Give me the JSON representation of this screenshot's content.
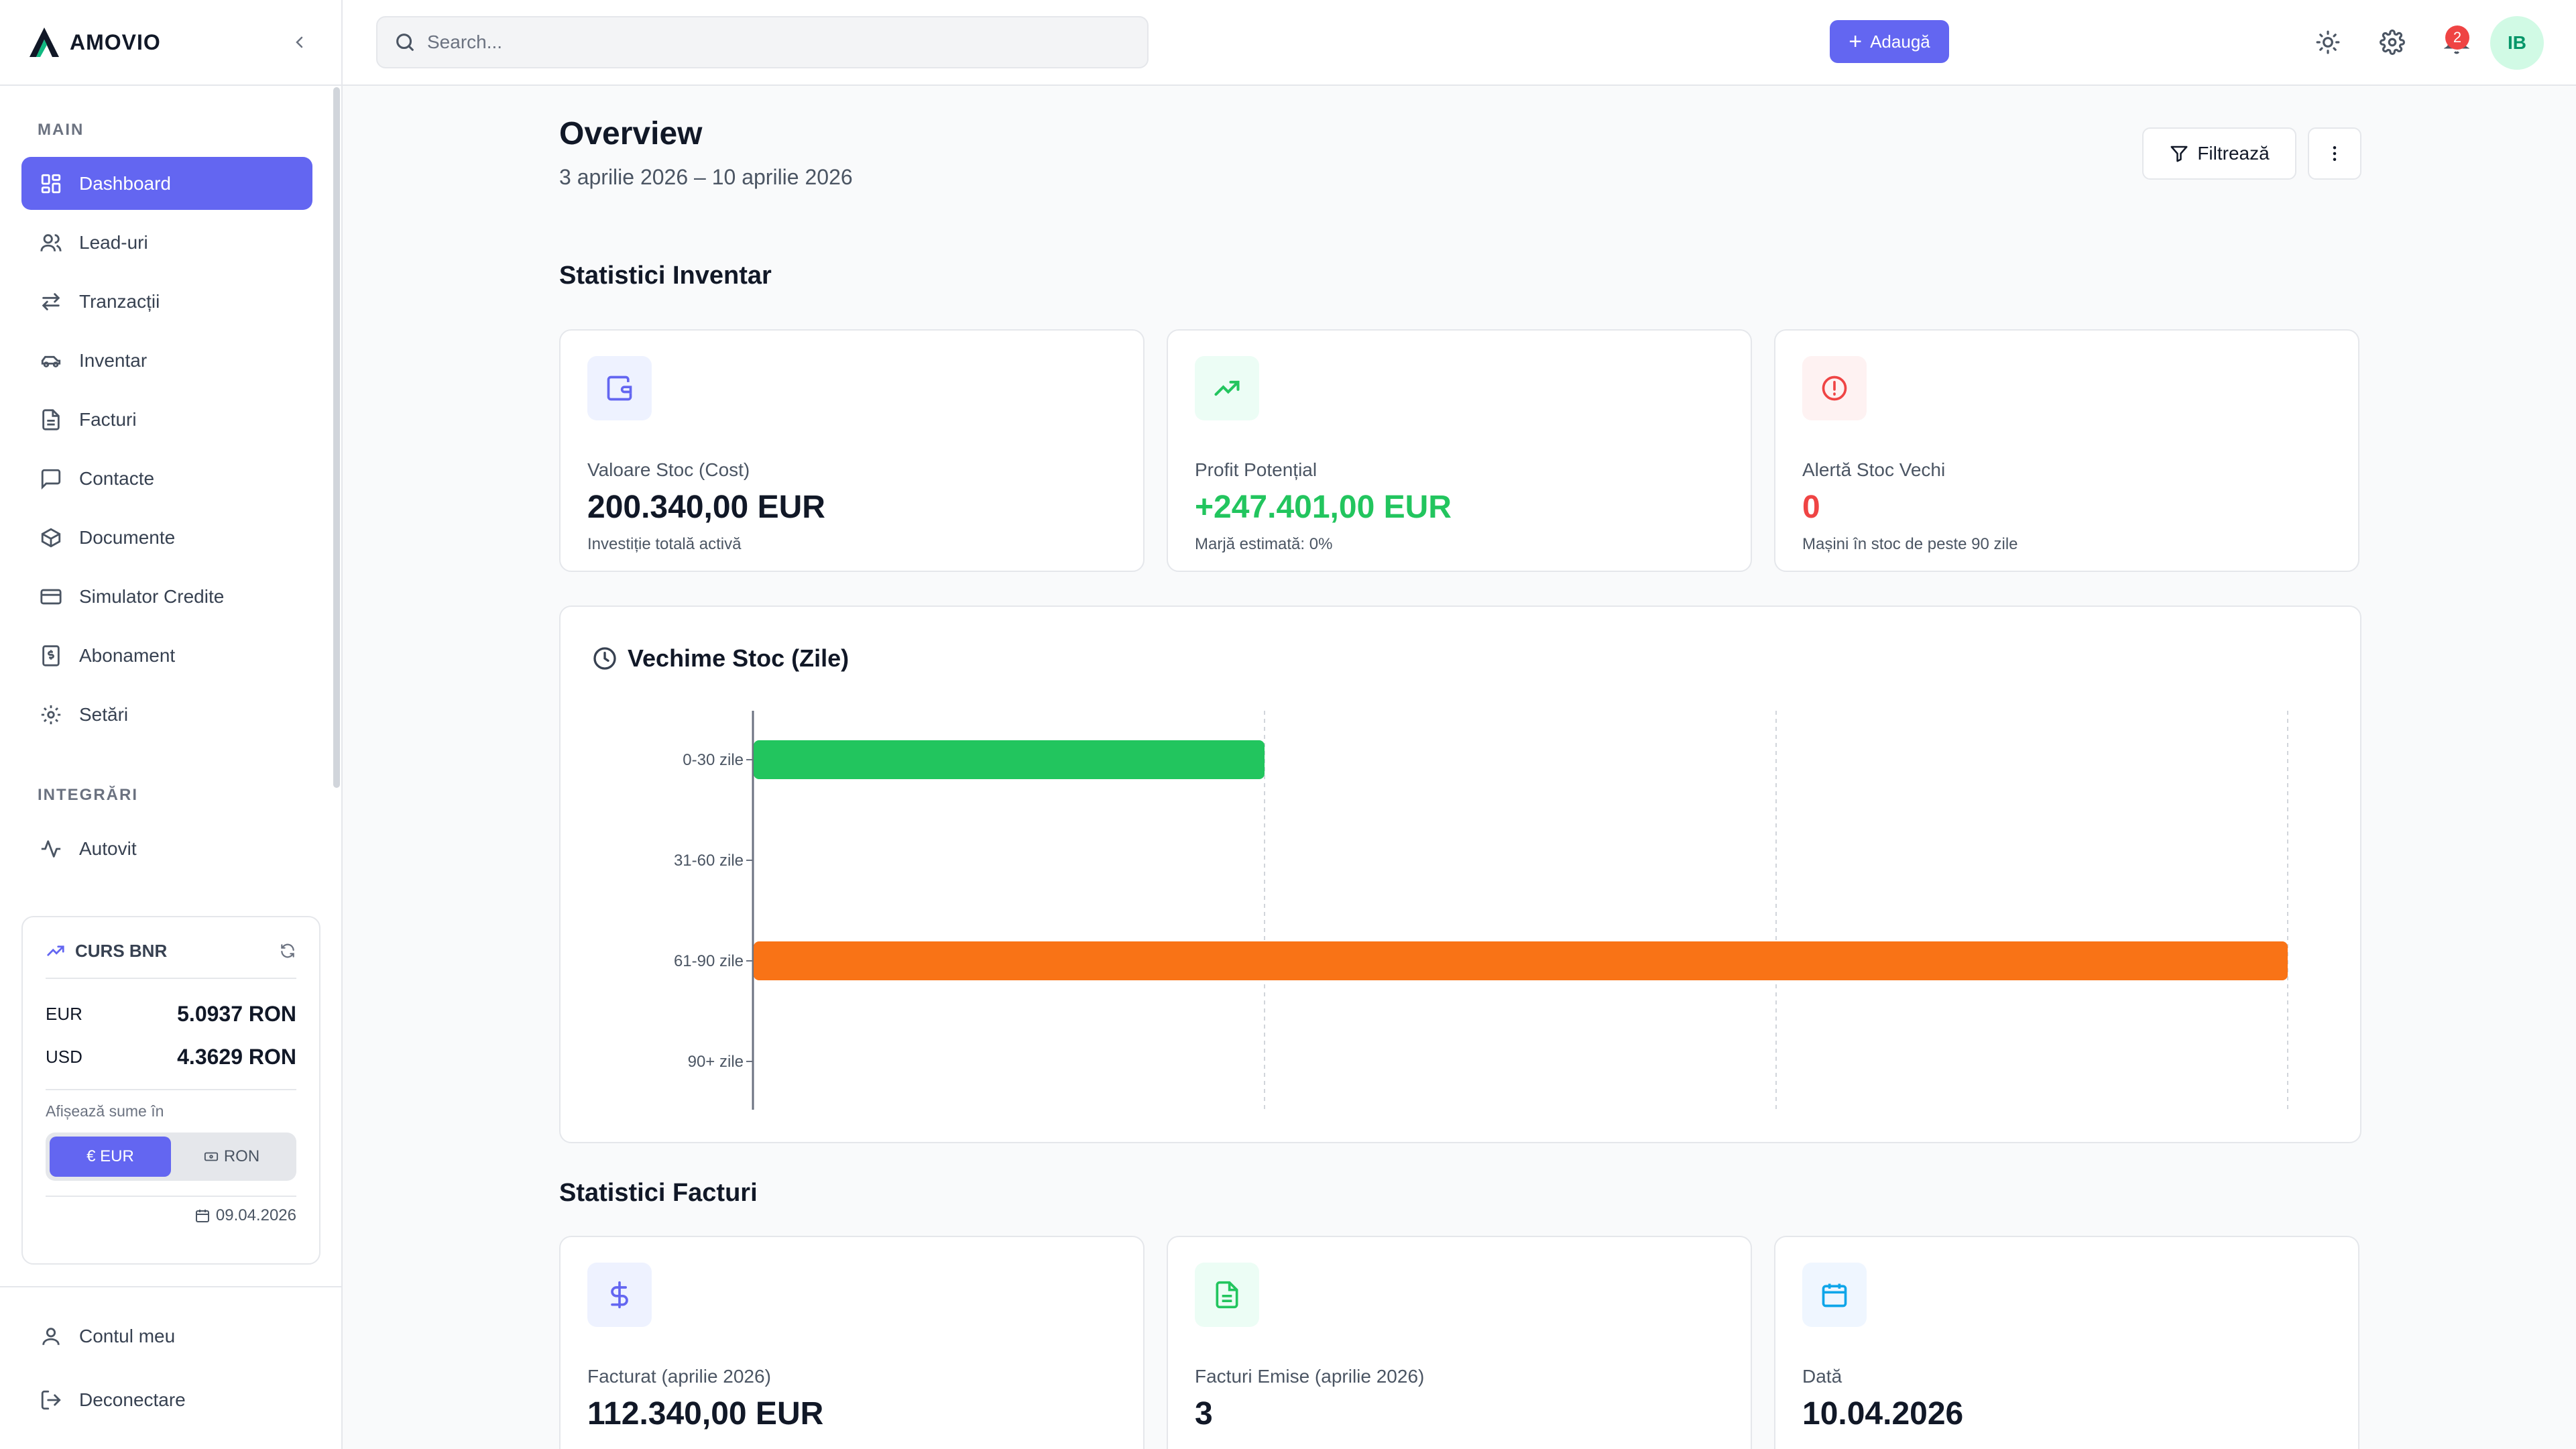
{
  "brand": {
    "name": "AMOVIO"
  },
  "sidebar": {
    "main_title": "MAIN",
    "items": [
      {
        "label": "Dashboard",
        "icon": "dashboard-icon",
        "active": true
      },
      {
        "label": "Lead-uri",
        "icon": "users-icon"
      },
      {
        "label": "Tranzacții",
        "icon": "arrows-icon"
      },
      {
        "label": "Inventar",
        "icon": "car-icon"
      },
      {
        "label": "Facturi",
        "icon": "file-icon"
      },
      {
        "label": "Contacte",
        "icon": "message-icon"
      },
      {
        "label": "Documente",
        "icon": "box-icon"
      },
      {
        "label": "Simulator Credite",
        "icon": "credit-card-icon"
      },
      {
        "label": "Abonament",
        "icon": "dollar-doc-icon"
      },
      {
        "label": "Setări",
        "icon": "gear-icon"
      }
    ],
    "integrations_title": "INTEGRĂRI",
    "integrations": [
      {
        "label": "Autovit",
        "icon": "activity-icon"
      }
    ],
    "curs": {
      "title": "CURS BNR",
      "rates": [
        {
          "currency": "EUR",
          "value": "5.0937 RON"
        },
        {
          "currency": "USD",
          "value": "4.3629 RON"
        }
      ],
      "display_label": "Afișează sume în",
      "options": [
        {
          "label": "€ EUR",
          "selected": true
        },
        {
          "label": "RON",
          "selected": false
        }
      ],
      "date": "09.04.2026"
    },
    "bottom": [
      {
        "label": "Contul meu",
        "icon": "user-icon"
      },
      {
        "label": "Deconectare",
        "icon": "logout-icon"
      }
    ]
  },
  "topbar": {
    "search_placeholder": "Search...",
    "add_label": "Adaugă",
    "notification_count": "2",
    "avatar_initials": "IB"
  },
  "main": {
    "title": "Overview",
    "date_range": "3 aprilie 2026 – 10 aprilie 2026",
    "filter_label": "Filtrează",
    "inventory_title": "Statistici Inventar",
    "inventory_cards": [
      {
        "label": "Valoare Stoc (Cost)",
        "value": "200.340,00 EUR",
        "note": "Investiție totală activă",
        "icon": "wallet-icon",
        "color": "#111827"
      },
      {
        "label": "Profit Potențial",
        "value": "+247.401,00 EUR",
        "note": "Marjă estimată: 0%",
        "icon": "trending-up-icon",
        "color": "#22c55e"
      },
      {
        "label": "Alertă Stoc Vechi",
        "value": "0",
        "note": "Mașini în stoc de peste 90 zile",
        "icon": "alert-circle-icon",
        "color": "#ef4444"
      }
    ],
    "invoices_title": "Statistici Facturi",
    "invoice_cards": [
      {
        "label": "Facturat (aprilie 2026)",
        "value": "112.340,00 EUR",
        "icon": "dollar-icon"
      },
      {
        "label": "Facturi Emise (aprilie 2026)",
        "value": "3",
        "icon": "file-text-icon"
      },
      {
        "label": "Dată",
        "value": "10.04.2026",
        "icon": "calendar-icon"
      }
    ]
  },
  "chart_data": {
    "type": "bar",
    "orientation": "horizontal",
    "title": "Vechime Stoc (Zile)",
    "categories": [
      "0-30 zile",
      "31-60 zile",
      "61-90 zile",
      "90+ zile"
    ],
    "values": [
      1,
      0,
      3,
      0
    ],
    "colors": [
      "#22c55e",
      "#3b82f6",
      "#f97316",
      "#ef4444"
    ],
    "xlim": [
      0,
      3
    ],
    "grid": "vertical-dashed"
  }
}
